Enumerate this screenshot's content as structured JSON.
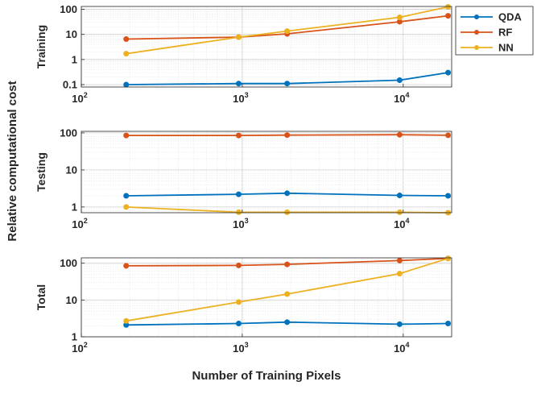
{
  "figure": {
    "xlabel": "Number of Training Pixels",
    "ylabel": "Relative computational cost"
  },
  "legend": {
    "placement": "top-right outside",
    "entries": [
      "QDA",
      "RF",
      "NN"
    ]
  },
  "colors": {
    "QDA": "#0072BD",
    "RF": "#D95319",
    "NN": "#EDB120",
    "axes": "#262626",
    "grid": "#dcdcdc"
  },
  "chart_data": [
    {
      "type": "line",
      "title": "",
      "ylabel": "Training",
      "xscale": "log",
      "yscale": "log",
      "xlim": [
        100,
        20000
      ],
      "ylim": [
        0.08,
        130
      ],
      "grid": true,
      "x_ticks": [
        "10^2",
        "10^3",
        "10^4"
      ],
      "y_ticks": [
        "0.1",
        "1",
        "10",
        "100"
      ],
      "x": [
        190,
        950,
        1900,
        9500,
        19000
      ],
      "series": [
        {
          "name": "QDA",
          "values": [
            0.1,
            0.11,
            0.11,
            0.15,
            0.3
          ]
        },
        {
          "name": "RF",
          "values": [
            6.5,
            7.8,
            10.5,
            32,
            55
          ]
        },
        {
          "name": "NN",
          "values": [
            1.7,
            7.8,
            13.5,
            48,
            125
          ]
        }
      ]
    },
    {
      "type": "line",
      "title": "",
      "ylabel": "Testing",
      "xscale": "log",
      "yscale": "log",
      "xlim": [
        100,
        20000
      ],
      "ylim": [
        0.7,
        110
      ],
      "grid": true,
      "x_ticks": [
        "10^2",
        "10^3",
        "10^4"
      ],
      "y_ticks": [
        "1",
        "10",
        "100"
      ],
      "x": [
        190,
        950,
        1900,
        9500,
        19000
      ],
      "series": [
        {
          "name": "QDA",
          "values": [
            2.0,
            2.2,
            2.35,
            2.05,
            2.0
          ]
        },
        {
          "name": "RF",
          "values": [
            85,
            85,
            87,
            89,
            86
          ]
        },
        {
          "name": "NN",
          "values": [
            1.0,
            0.72,
            0.72,
            0.72,
            0.7
          ]
        }
      ]
    },
    {
      "type": "line",
      "title": "",
      "ylabel": "Total",
      "xscale": "log",
      "yscale": "log",
      "xlim": [
        100,
        20000
      ],
      "ylim": [
        1,
        140
      ],
      "grid": true,
      "x_ticks": [
        "10^2",
        "10^3",
        "10^4"
      ],
      "y_ticks": [
        "1",
        "10",
        "100"
      ],
      "x": [
        190,
        950,
        1900,
        9500,
        19000
      ],
      "series": [
        {
          "name": "QDA",
          "values": [
            2.1,
            2.3,
            2.5,
            2.2,
            2.3
          ]
        },
        {
          "name": "RF",
          "values": [
            85,
            87,
            93,
            118,
            135
          ]
        },
        {
          "name": "NN",
          "values": [
            2.7,
            8.8,
            14.5,
            52,
            135
          ]
        }
      ]
    }
  ]
}
